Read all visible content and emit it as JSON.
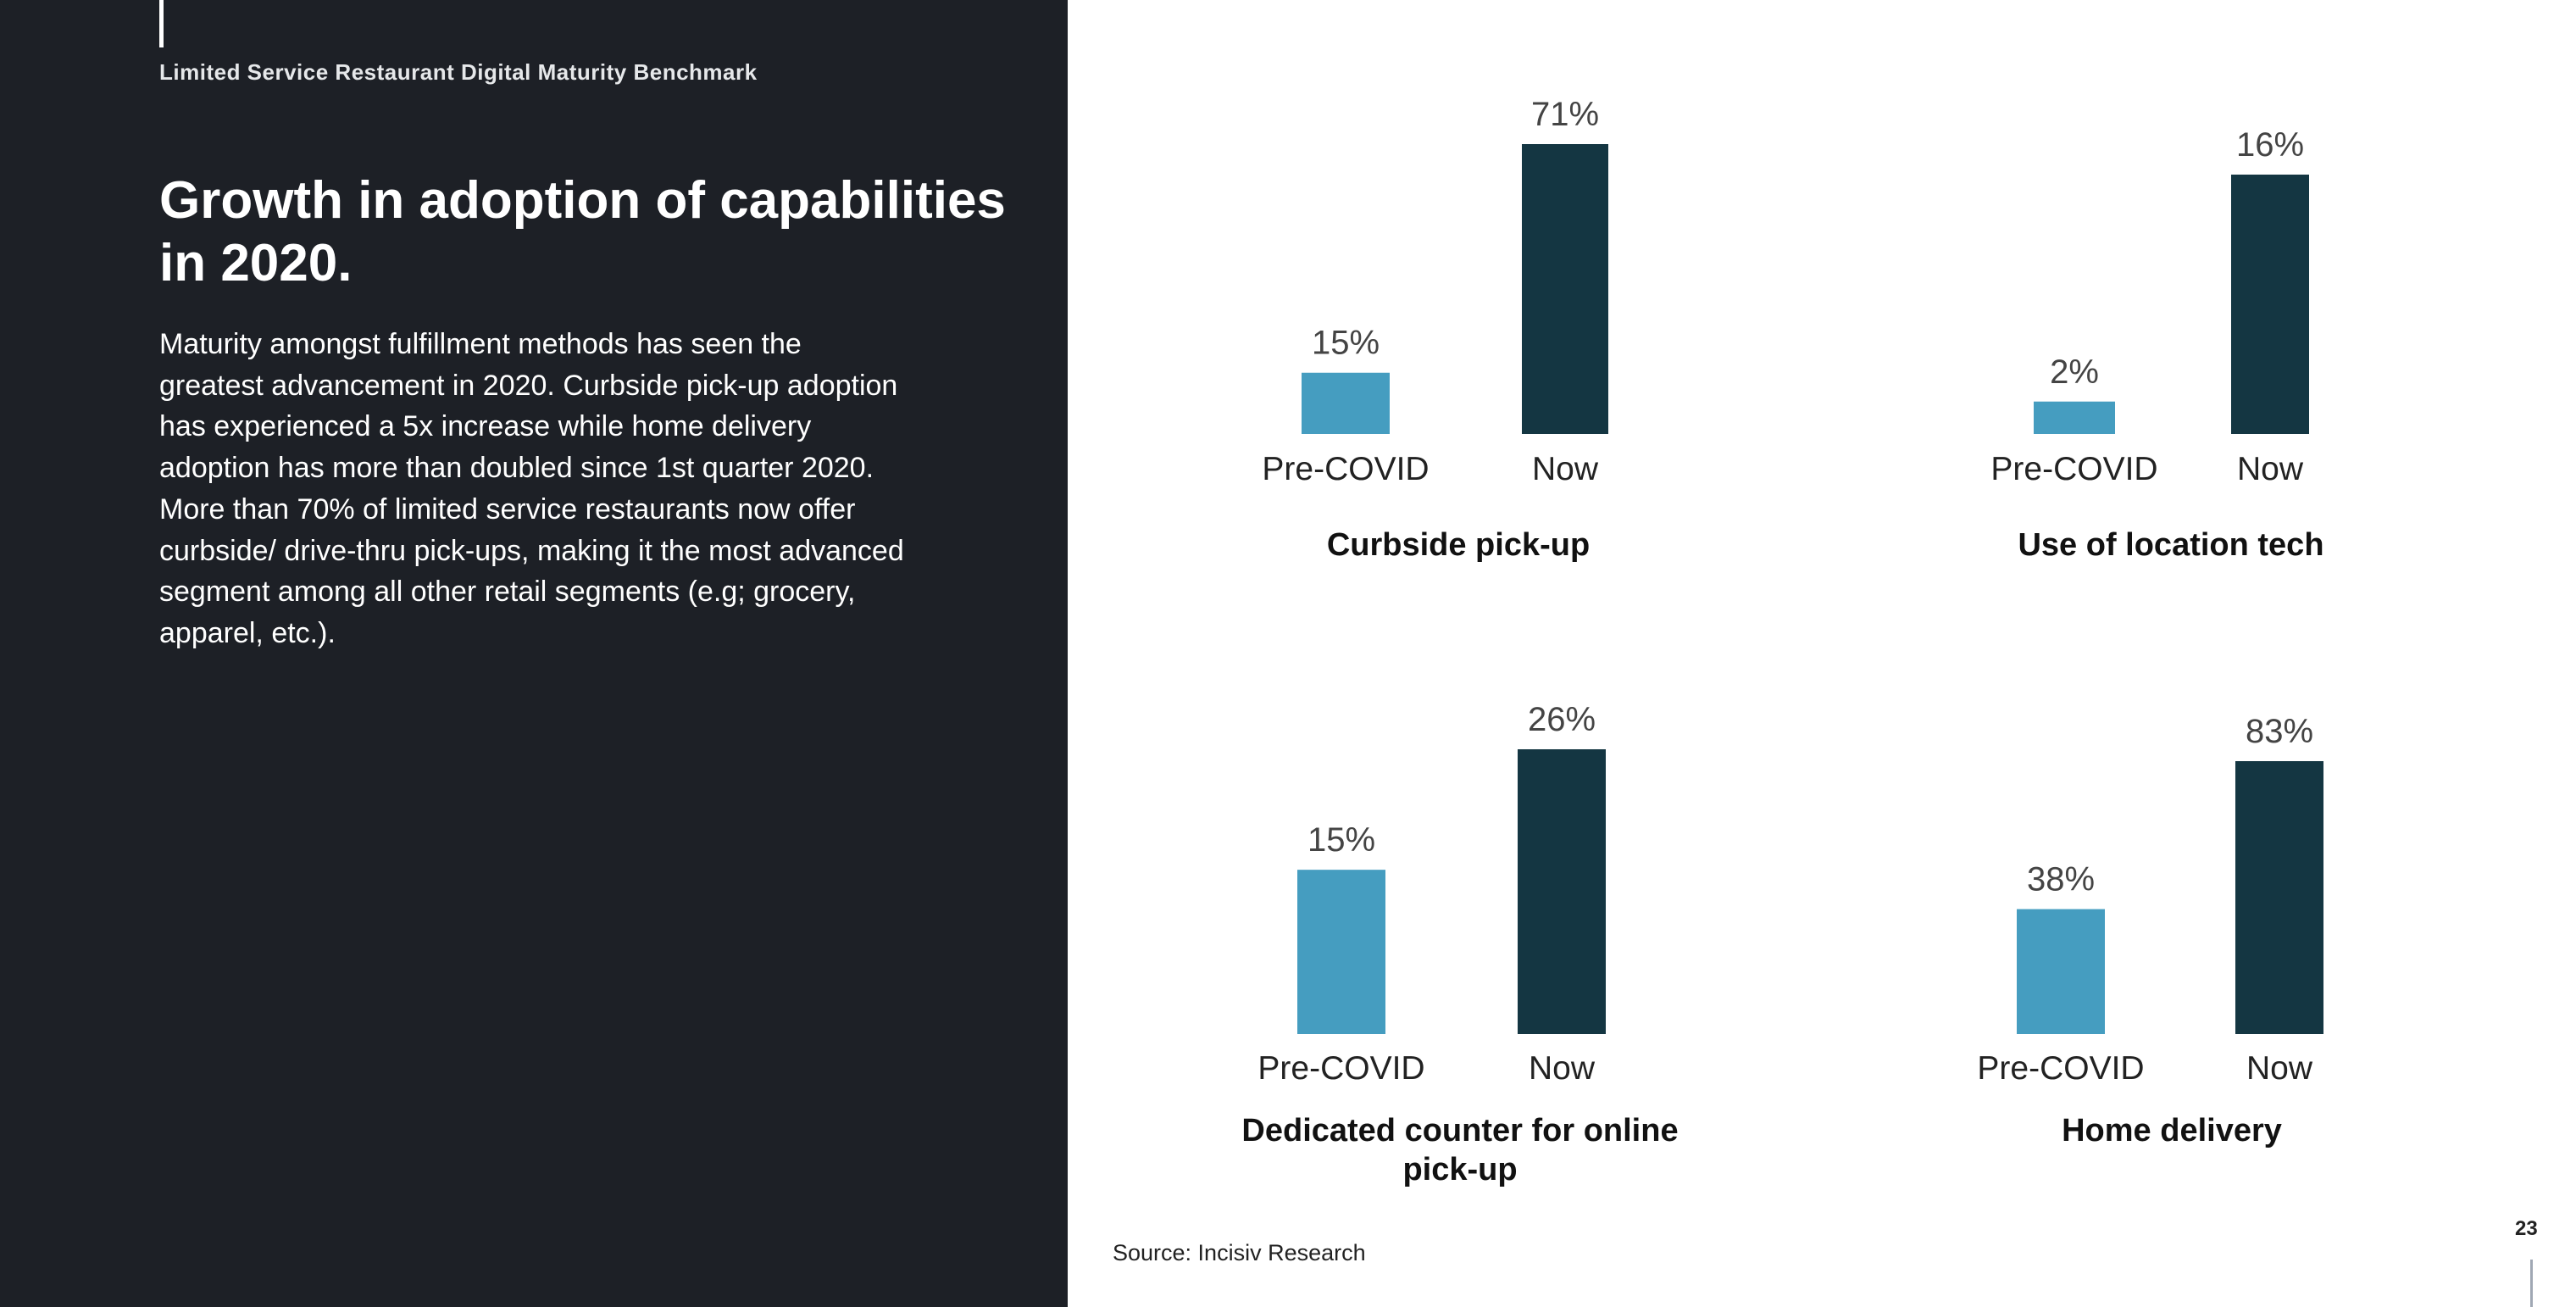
{
  "header": "Limited Service Restaurant Digital Maturity Benchmark",
  "title": "Growth in adoption of capabilities in 2020.",
  "body": "Maturity amongst fulfillment methods has seen the greatest advancement in 2020.  Curbside pick-up adoption has experienced a 5x increase while home delivery adoption has more than doubled since 1st quarter 2020. More than 70% of limited service restaurants now offer curbside/ drive-thru pick-ups, making it the most advanced segment among all other retail segments (e.g; grocery, apparel, etc.).",
  "source": "Source: Incisiv Research",
  "page_number": "23",
  "colors": {
    "pre": "#459dc0",
    "now": "#143642",
    "panel": "#1d2026"
  },
  "chart_data": [
    {
      "type": "bar",
      "title": "Curbside pick-up",
      "categories": [
        "Pre-COVID",
        "Now"
      ],
      "values": [
        15,
        71
      ],
      "data_labels": [
        "15%",
        "71%"
      ]
    },
    {
      "type": "bar",
      "title": "Use of location tech",
      "categories": [
        "Pre-COVID",
        "Now"
      ],
      "values": [
        2,
        16
      ],
      "data_labels": [
        "2%",
        "16%"
      ]
    },
    {
      "type": "bar",
      "title": "Dedicated counter for online pick-up",
      "categories": [
        "Pre-COVID",
        "Now"
      ],
      "values": [
        15,
        26
      ],
      "data_labels": [
        "15%",
        "26%"
      ]
    },
    {
      "type": "bar",
      "title": "Home delivery",
      "categories": [
        "Pre-COVID",
        "Now"
      ],
      "values": [
        38,
        83
      ],
      "data_labels": [
        "38%",
        "83%"
      ]
    }
  ]
}
